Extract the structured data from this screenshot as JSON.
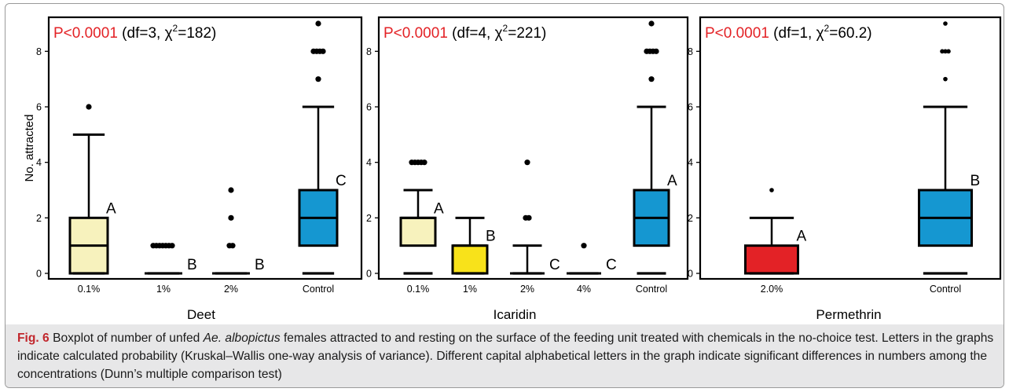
{
  "caption": {
    "label": "Fig. 6",
    "part1": "  Boxplot of number of unfed ",
    "species": "Ae. albopictus",
    "part2": " females attracted to and resting on the surface of the feeding unit treated with chemicals in the no-choice test. Letters in the graphs indicate calculated probability (Kruskal–Wallis one-way analysis of variance). Different capital alphabetical letters in the graph indicate significant differences in numbers among the concentrations (Dunn’s multiple comparison test)"
  },
  "colors": {
    "light_yellow": "#f7f2bd",
    "yellow": "#f8e21a",
    "blue": "#1597d1",
    "red": "#e32226",
    "red_text": "#e32226"
  },
  "chart_data": [
    {
      "type": "box",
      "panel": "Deet",
      "xlabel": "Deet",
      "ylabel": "No. attracted",
      "ylim": [
        0,
        9
      ],
      "yticks": [
        "0",
        "2",
        "4",
        "6",
        "8"
      ],
      "stat": {
        "p": "P<0.0001",
        "df": "(df=3,",
        "chi_symbol": "χ",
        "chi_sup": "2",
        "chi_value": "=182)"
      },
      "categories": [
        "0.1%",
        "1%",
        "2%",
        "Control"
      ],
      "boxes": [
        {
          "whisker_low": 0,
          "q1": 0,
          "median": 1,
          "q3": 2,
          "whisker_high": 5,
          "outliers": [
            6
          ],
          "letter": "A",
          "color": "#f7f2bd"
        },
        {
          "whisker_low": 0,
          "q1": 0,
          "median": 0,
          "q3": 0,
          "whisker_high": 0,
          "outliers": [
            1
          ],
          "letter": "B",
          "color": "#f7f2bd"
        },
        {
          "whisker_low": 0,
          "q1": 0,
          "median": 0,
          "q3": 0,
          "whisker_high": 0,
          "outliers": [
            1,
            2,
            3
          ],
          "letter": "B",
          "color": "#f7f2bd"
        },
        {
          "whisker_low": 0,
          "q1": 1,
          "median": 2,
          "q3": 3,
          "whisker_high": 6,
          "outliers": [
            7,
            8,
            9
          ],
          "letter": "C",
          "color": "#1597d1"
        }
      ]
    },
    {
      "type": "box",
      "panel": "Icaridin",
      "xlabel": "Icaridin",
      "ylim": [
        0,
        9
      ],
      "yticks": [
        "0",
        "2",
        "4",
        "6",
        "8"
      ],
      "stat": {
        "p": "P<0.0001",
        "df": "(df=4,",
        "chi_symbol": "χ",
        "chi_sup": "2",
        "chi_value": "=221)"
      },
      "categories": [
        "0.1%",
        "1%",
        "2%",
        "4%",
        "Control"
      ],
      "boxes": [
        {
          "whisker_low": 0,
          "q1": 1,
          "median": 2,
          "q3": 2,
          "whisker_high": 3,
          "outliers": [
            4
          ],
          "letter": "A",
          "color": "#f7f2bd"
        },
        {
          "whisker_low": 0,
          "q1": 0,
          "median": 1,
          "q3": 1,
          "whisker_high": 2,
          "outliers": [],
          "letter": "B",
          "color": "#f8e21a"
        },
        {
          "whisker_low": 0,
          "q1": 0,
          "median": 0,
          "q3": 0,
          "whisker_high": 1,
          "outliers": [
            2,
            4
          ],
          "letter": "C",
          "color": "#f7f2bd"
        },
        {
          "whisker_low": 0,
          "q1": 0,
          "median": 0,
          "q3": 0,
          "whisker_high": 0,
          "outliers": [
            1
          ],
          "letter": "C",
          "color": "#f7f2bd"
        },
        {
          "whisker_low": 0,
          "q1": 1,
          "median": 2,
          "q3": 3,
          "whisker_high": 6,
          "outliers": [
            7,
            8,
            9
          ],
          "letter": "A",
          "color": "#1597d1"
        }
      ]
    },
    {
      "type": "box",
      "panel": "Permethrin",
      "xlabel": "Permethrin",
      "ylim": [
        0,
        9
      ],
      "yticks": [
        "0",
        "2",
        "4",
        "6",
        "8"
      ],
      "stat": {
        "p": "P<0.0001",
        "df": "(df=1,",
        "chi_symbol": "χ",
        "chi_sup": "2",
        "chi_value": "=60.2)"
      },
      "categories": [
        "2.0%",
        "Control"
      ],
      "boxes": [
        {
          "whisker_low": 0,
          "q1": 0,
          "median": 0,
          "q3": 1,
          "whisker_high": 2,
          "outliers": [
            3
          ],
          "letter": "A",
          "color": "#e32226"
        },
        {
          "whisker_low": 0,
          "q1": 1,
          "median": 2,
          "q3": 3,
          "whisker_high": 6,
          "outliers": [
            7,
            8,
            9
          ],
          "letter": "B",
          "color": "#1597d1"
        }
      ]
    }
  ]
}
